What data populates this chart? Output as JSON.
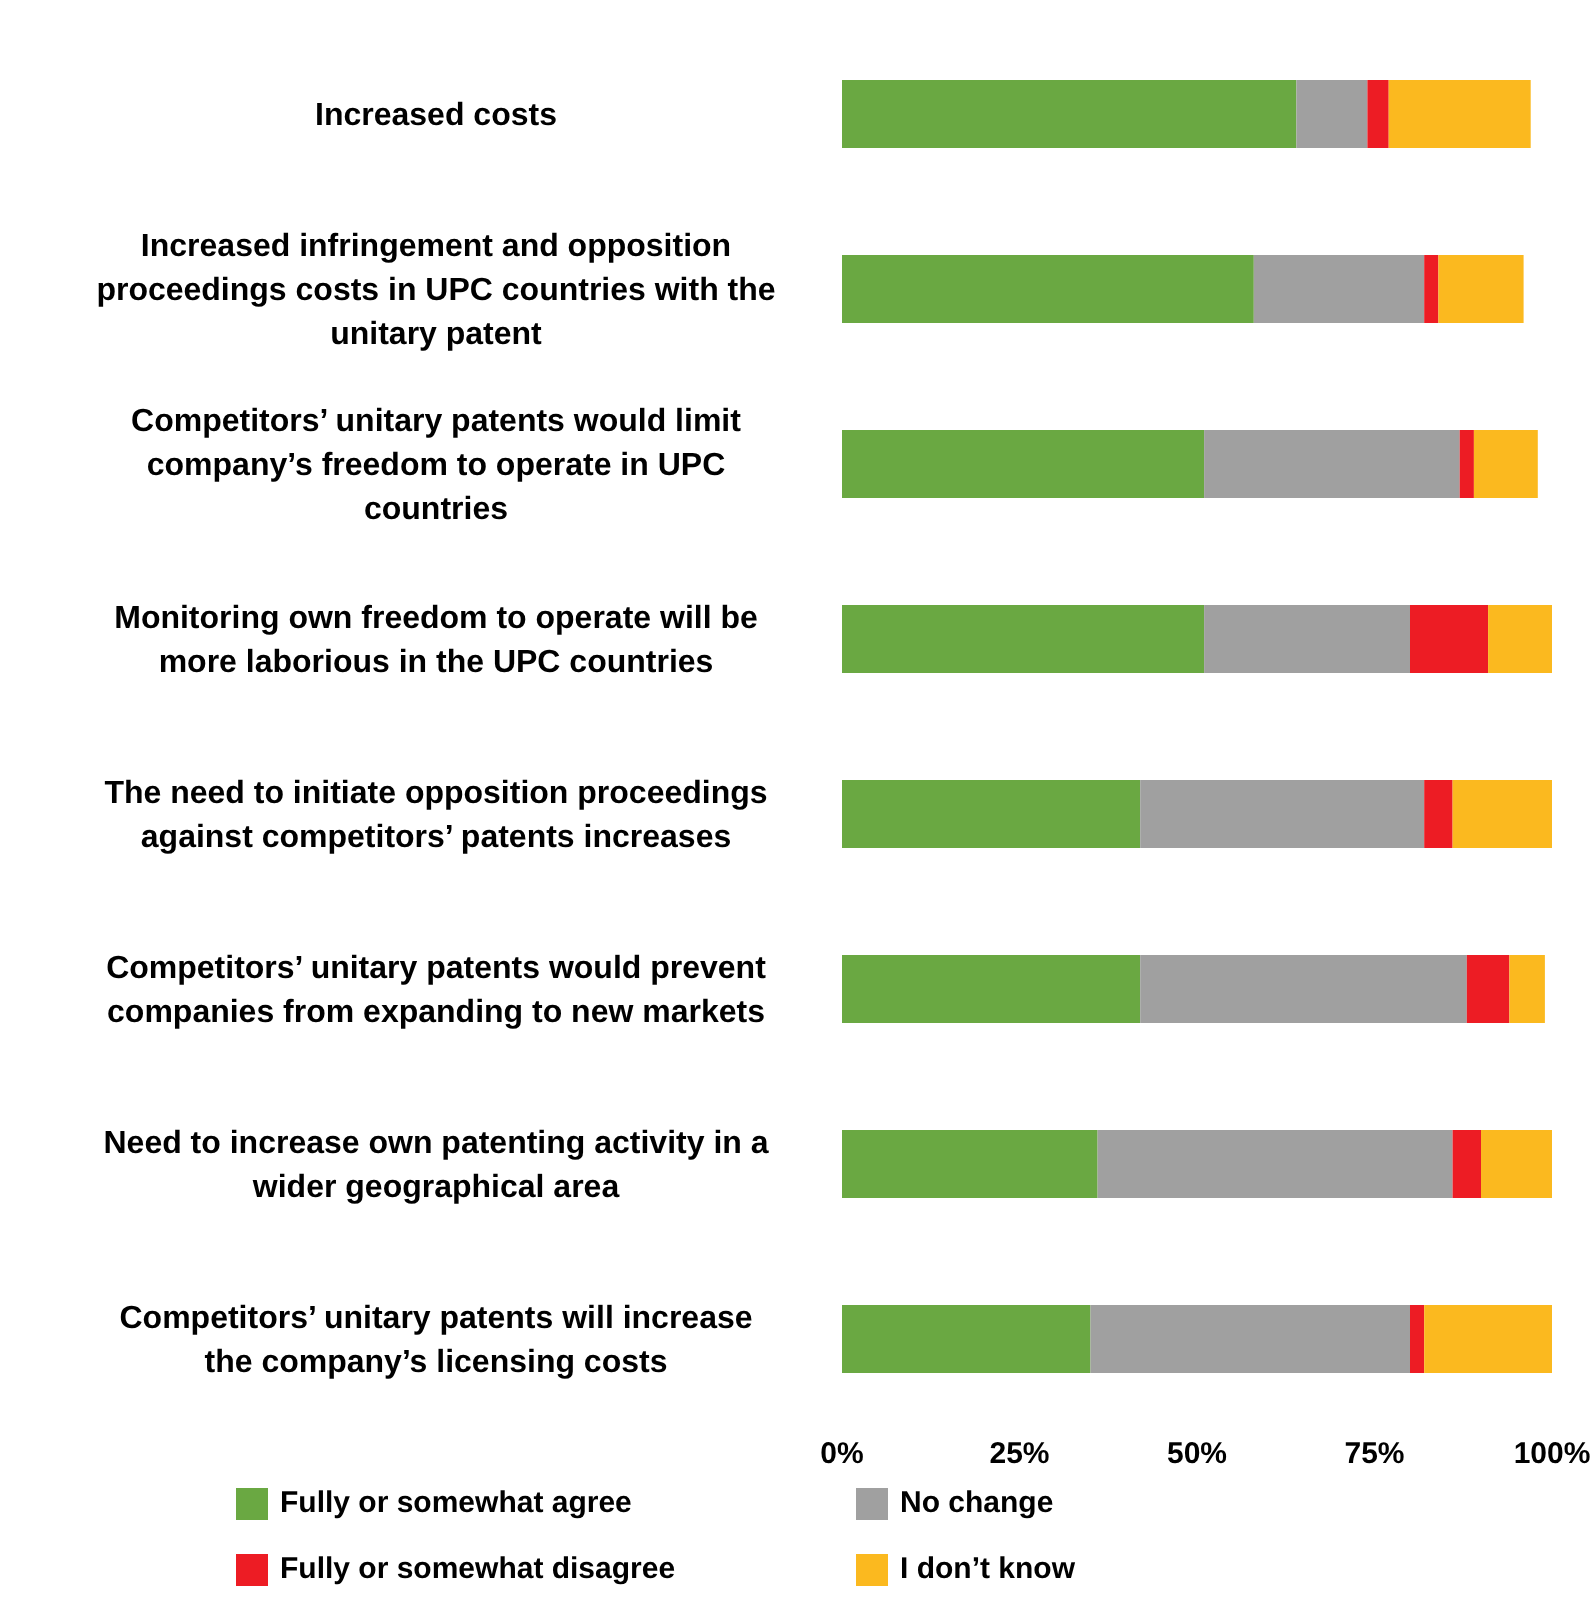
{
  "chart_data": {
    "type": "bar",
    "orientation": "horizontal",
    "stacked": true,
    "legend": "bottom",
    "grid": false,
    "categories": [
      "Increased costs",
      "Increased infringement and opposition proceedings costs in UPC countries with the unitary patent",
      "Competitors’ unitary patents would limit company’s freedom to operate in UPC countries",
      "Monitoring own freedom to operate will be more laborious in the UPC countries",
      "The need to initiate opposition proceedings against competitors’ patents increases",
      "Competitors’ unitary patents would prevent companies from expanding to new markets",
      "Need to increase own patenting activity in a wider geographical area",
      "Competitors’ unitary patents will increase the company’s licensing costs"
    ],
    "series": [
      {
        "name": "Fully or somewhat agree",
        "color": "#6aa842",
        "values": [
          64,
          58,
          51,
          51,
          42,
          42,
          36,
          35
        ]
      },
      {
        "name": "No change",
        "color": "#a0a0a0",
        "values": [
          10,
          24,
          36,
          29,
          40,
          46,
          50,
          45
        ]
      },
      {
        "name": "Fully or somewhat disagree",
        "color": "#ed1c24",
        "values": [
          3,
          2,
          2,
          11,
          4,
          6,
          4,
          2
        ]
      },
      {
        "name": "I don’t know",
        "color": "#fbb91f",
        "values": [
          20,
          12,
          9,
          9,
          14,
          5,
          10,
          18
        ]
      }
    ],
    "xlim": [
      0,
      100
    ],
    "xticks": [
      {
        "value": 0,
        "label": "0%"
      },
      {
        "value": 25,
        "label": "25%"
      },
      {
        "value": 50,
        "label": "50%"
      },
      {
        "value": 75,
        "label": "75%"
      },
      {
        "value": 100,
        "label": "100%"
      }
    ]
  }
}
